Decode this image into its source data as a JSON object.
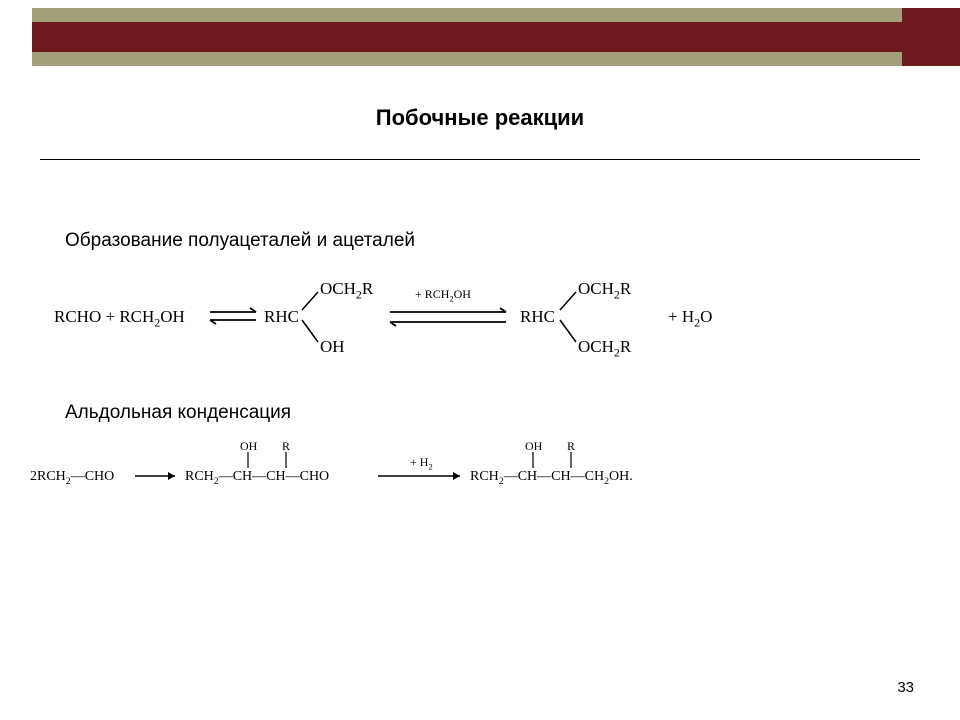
{
  "colors": {
    "maroon": "#6e1a1e",
    "olive": "#a3a07c",
    "black": "#000000",
    "white": "#ffffff"
  },
  "header": {
    "maroon_bar_h": 30,
    "olive_strip_h": 14,
    "corner_block_w": 58
  },
  "title": "Побочные реакции",
  "section1_label": "Образование полуацеталей и ацеталей",
  "section2_label": "Альдольная конденсация",
  "reaction1": {
    "left": "RCHO + RCH₂OH",
    "mid_core": "RHC",
    "mid_top": "OCH₂R",
    "mid_bot": "OH",
    "cond": "+ RCH₂OH",
    "right_core": "RHC",
    "right_top": "OCH₂R",
    "right_bot": "OCH₂R",
    "product": "+ H₂O"
  },
  "reaction2": {
    "left": "2RCH₂—CHO",
    "mid_main": "RCH₂—CH—CH—CHO",
    "mid_oh": "OH",
    "mid_r": "R",
    "cond": "+ H₂",
    "right_main": "RCH₂—CH—CH—CH₂OH.",
    "right_oh": "OH",
    "right_r": "R"
  },
  "page_number": "33"
}
